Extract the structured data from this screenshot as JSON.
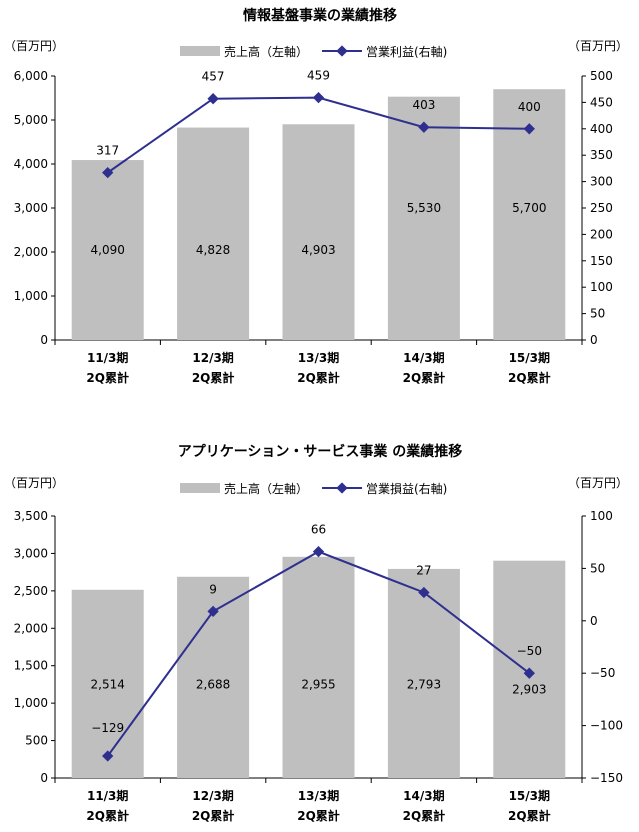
{
  "chart_data": [
    {
      "type": "bar",
      "title": "情報基盤事業の業績推移",
      "left_unit": "（百万円）",
      "right_unit": "（百万円）",
      "categories": [
        [
          "11/3期",
          "2Q累計"
        ],
        [
          "12/3期",
          "2Q累計"
        ],
        [
          "13/3期",
          "2Q累計"
        ],
        [
          "14/3期",
          "2Q累計"
        ],
        [
          "15/3期",
          "2Q累計"
        ]
      ],
      "series": [
        {
          "name": "売上高（左軸）",
          "kind": "bar",
          "axis": "left",
          "values": [
            4090,
            4828,
            4903,
            5530,
            5700
          ],
          "labels": [
            "4,090",
            "4,828",
            "4,903",
            "5,530",
            "5,700"
          ],
          "color": "#bfbfbf"
        },
        {
          "name": "営業利益(右軸)",
          "kind": "line",
          "axis": "right",
          "values": [
            317,
            457,
            459,
            403,
            400
          ],
          "labels": [
            "317",
            "457",
            "459",
            "403",
            "400"
          ],
          "color": "#2f2f8f"
        }
      ],
      "left_axis": {
        "min": 0,
        "max": 6000,
        "ticks": [
          "0",
          "1,000",
          "2,000",
          "3,000",
          "4,000",
          "5,000",
          "6,000"
        ]
      },
      "right_axis": {
        "min": 0,
        "max": 500,
        "ticks": [
          "0",
          "50",
          "100",
          "150",
          "200",
          "250",
          "300",
          "350",
          "400",
          "450",
          "500"
        ]
      },
      "legend_position": "top-center",
      "grid": false
    },
    {
      "type": "bar",
      "title": "アプリケーション・サービス事業 の業績推移",
      "left_unit": "（百万円）",
      "right_unit": "（百万円）",
      "categories": [
        [
          "11/3期",
          "2Q累計"
        ],
        [
          "12/3期",
          "2Q累計"
        ],
        [
          "13/3期",
          "2Q累計"
        ],
        [
          "14/3期",
          "2Q累計"
        ],
        [
          "15/3期",
          "2Q累計"
        ]
      ],
      "series": [
        {
          "name": "売上高（左軸）",
          "kind": "bar",
          "axis": "left",
          "values": [
            2514,
            2688,
            2955,
            2793,
            2903
          ],
          "labels": [
            "2,514",
            "2,688",
            "2,955",
            "2,793",
            "2,903"
          ],
          "color": "#bfbfbf"
        },
        {
          "name": "営業損益(右軸)",
          "kind": "line",
          "axis": "right",
          "values": [
            -129,
            9,
            66,
            27,
            -50
          ],
          "labels": [
            "−129",
            "9",
            "66",
            "27",
            "−50"
          ],
          "color": "#2f2f8f"
        }
      ],
      "left_axis": {
        "min": 0,
        "max": 3500,
        "ticks": [
          "0",
          "500",
          "1,000",
          "1,500",
          "2,000",
          "2,500",
          "3,000",
          "3,500"
        ]
      },
      "right_axis": {
        "min": -150,
        "max": 100,
        "ticks": [
          "−150",
          "−100",
          "−50",
          "0",
          "50",
          "100"
        ]
      },
      "legend_position": "top-center",
      "grid": false
    }
  ]
}
